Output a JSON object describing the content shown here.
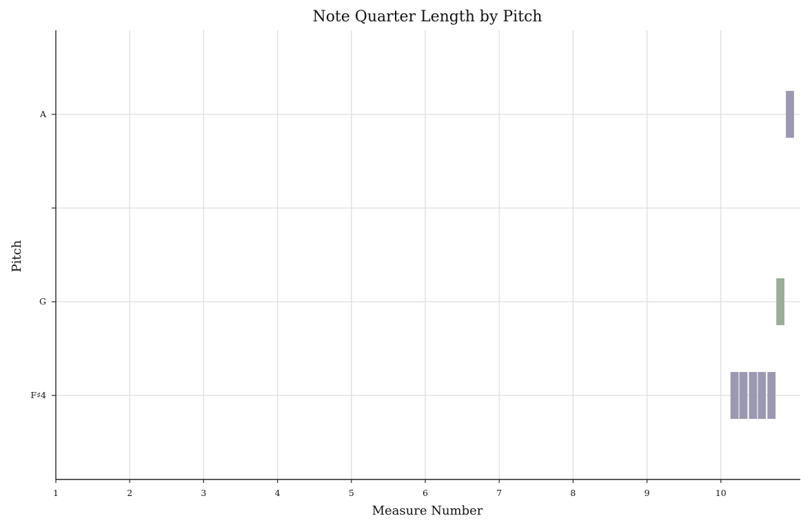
{
  "chart_data": {
    "type": "bar",
    "title": "Note Quarter Length by Pitch",
    "xlabel": "Measure Number",
    "ylabel": "Pitch",
    "x_ticks": [
      1,
      2,
      3,
      4,
      5,
      6,
      7,
      8,
      9,
      10
    ],
    "xlim": [
      1,
      11.1
    ],
    "y_categories": [
      "A",
      "",
      "G",
      "F♯4"
    ],
    "grid": true,
    "colors": {
      "purple": "#9b98b2",
      "green": "#9aae9a"
    },
    "notes": [
      {
        "pitch": "F♯4",
        "start": 10.13,
        "duration": 0.11,
        "color": "#9b98b2"
      },
      {
        "pitch": "F♯4",
        "start": 10.25,
        "duration": 0.11,
        "color": "#9b98b2"
      },
      {
        "pitch": "F♯4",
        "start": 10.38,
        "duration": 0.11,
        "color": "#9b98b2"
      },
      {
        "pitch": "F♯4",
        "start": 10.5,
        "duration": 0.11,
        "color": "#9b98b2"
      },
      {
        "pitch": "F♯4",
        "start": 10.63,
        "duration": 0.11,
        "color": "#9b98b2"
      },
      {
        "pitch": "G",
        "start": 10.75,
        "duration": 0.11,
        "color": "#9aae9a"
      },
      {
        "pitch": "A",
        "start": 10.88,
        "duration": 0.11,
        "color": "#9b98b2"
      }
    ]
  }
}
